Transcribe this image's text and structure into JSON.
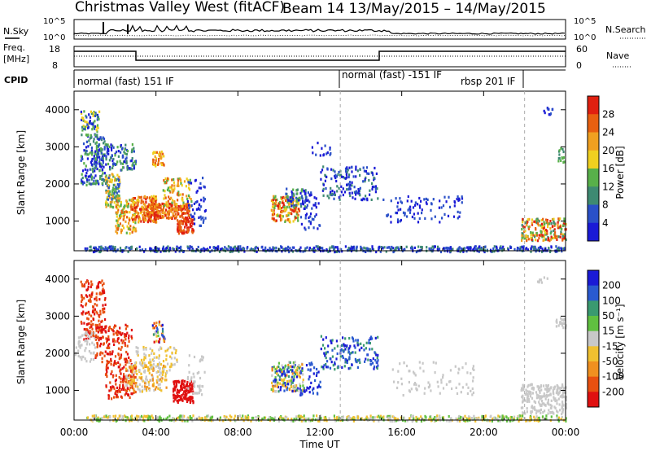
{
  "title_left": "Christmas Valley West (fitACF)",
  "title_right": "Beam 14  13/May/2015 – 14/May/2015",
  "nsky": {
    "label": "N.Sky",
    "ticks": [
      "10^5",
      "10^0"
    ],
    "right_label": "N.Search",
    "right_ticks": [
      "10^5",
      "10^0"
    ]
  },
  "freq": {
    "label1": "Freq.",
    "label2": "[MHz]",
    "ticks": [
      "18",
      "8"
    ],
    "right_label": "Nave",
    "right_ticks": [
      "60",
      "0"
    ]
  },
  "cpid": {
    "label": "CPID",
    "segments": [
      {
        "label": "normal (fast) 151 IF",
        "start": 0
      },
      {
        "label": "normal (fast) -151 IF",
        "start": 13
      },
      {
        "label": "rbsp 201 IF",
        "start": 22
      }
    ]
  },
  "chart_data": [
    {
      "type": "heatmap",
      "quantity": "Power",
      "ylabel": "Slant Range [km]",
      "ylim": [
        200,
        4500
      ],
      "yticks": [
        "1000",
        "2000",
        "3000",
        "4000"
      ],
      "xlim": [
        0,
        24
      ],
      "colorbar": {
        "label": "Power [dB]",
        "ticks": [
          "4",
          "8",
          "12",
          "16",
          "20",
          "24",
          "28"
        ],
        "colors": [
          "#1a1ad6",
          "#2a50c8",
          "#3e8a72",
          "#58b04a",
          "#f0d020",
          "#f0a020",
          "#e86010",
          "#e02010"
        ]
      }
    },
    {
      "type": "heatmap",
      "quantity": "Velocity",
      "ylabel": "Slant Range [km]",
      "ylim": [
        200,
        4500
      ],
      "yticks": [
        "1000",
        "2000",
        "3000",
        "4000"
      ],
      "xlim": [
        0,
        24
      ],
      "colorbar": {
        "label": "Velocity [m s⁻¹]",
        "ticks": [
          "200",
          "100",
          "50",
          "15",
          "-15",
          "-50",
          "-100",
          "-200"
        ],
        "colors": [
          "#1a1ad6",
          "#2a5ad0",
          "#3a9a70",
          "#60c040",
          "#c8c8c8",
          "#f0c030",
          "#f09020",
          "#e85010",
          "#e01010"
        ]
      }
    }
  ],
  "xaxis": {
    "label": "Time UT",
    "ticks": [
      "00:00",
      "04:00",
      "08:00",
      "12:00",
      "16:00",
      "20:00",
      "00:00"
    ]
  }
}
